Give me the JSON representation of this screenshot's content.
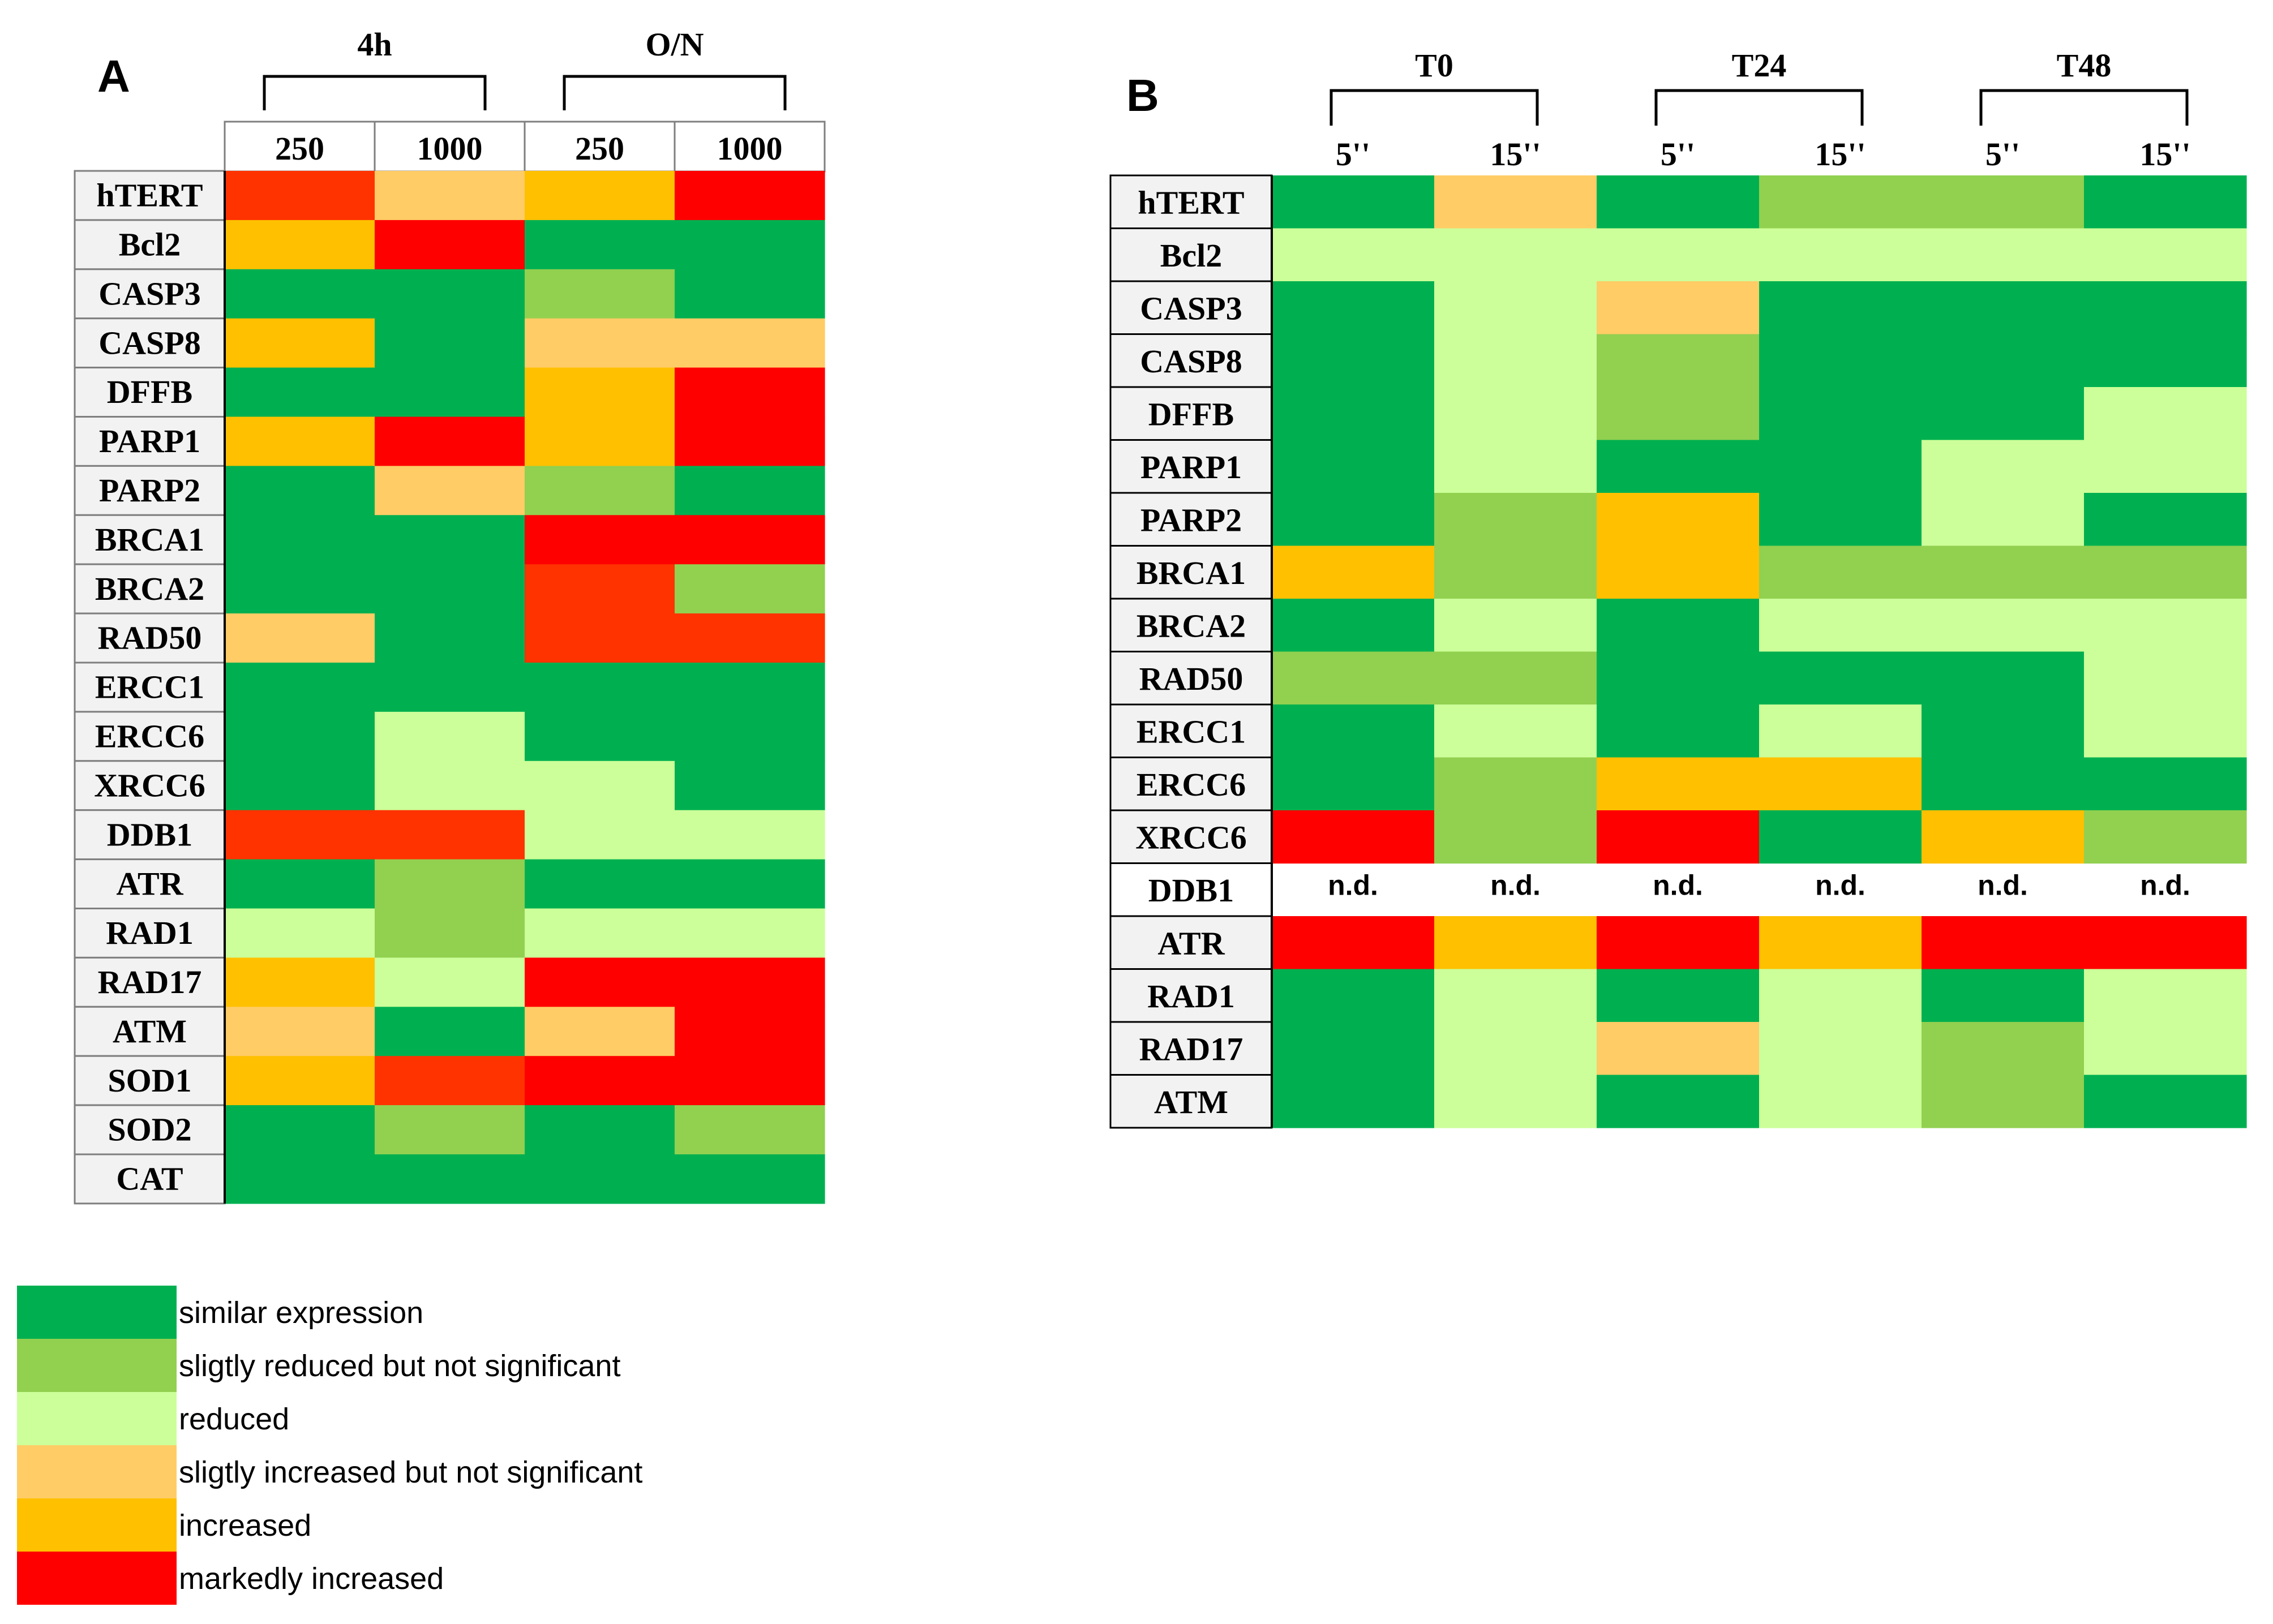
{
  "colors": {
    "similar": "#00B050",
    "slightly_reduced": "#92D050",
    "reduced": "#CCFF99",
    "slightly_increased": "#FFCC66",
    "increased": "#FFC000",
    "markedly_increased": "#FF0000",
    "orange_red": "#FF3300"
  },
  "legend": [
    {
      "key": "similar",
      "label": "similar expression"
    },
    {
      "key": "slightly_reduced",
      "label": "sligtly reduced but not significant"
    },
    {
      "key": "reduced",
      "label": "reduced"
    },
    {
      "key": "slightly_increased",
      "label": "sligtly increased but not significant"
    },
    {
      "key": "increased",
      "label": "increased"
    },
    {
      "key": "markedly_increased",
      "label": "markedly increased"
    }
  ],
  "chart_data": [
    {
      "type": "heatmap",
      "panel": "A",
      "groups": [
        {
          "label": "4h",
          "columns": [
            "250",
            "1000"
          ]
        },
        {
          "label": "O/N",
          "columns": [
            "250",
            "1000"
          ]
        }
      ],
      "columns": [
        "250",
        "1000",
        "250",
        "1000"
      ],
      "rows": [
        "hTERT",
        "Bcl2",
        "CASP3",
        "CASP8",
        "DFFB",
        "PARP1",
        "PARP2",
        "BRCA1",
        "BRCA2",
        "RAD50",
        "ERCC1",
        "ERCC6",
        "XRCC6",
        "DDB1",
        "ATR",
        "RAD1",
        "RAD17",
        "ATM",
        "SOD1",
        "SOD2",
        "CAT"
      ],
      "values": [
        [
          "orange_red",
          "slightly_increased",
          "increased",
          "markedly_increased"
        ],
        [
          "increased",
          "markedly_increased",
          "similar",
          "similar"
        ],
        [
          "similar",
          "similar",
          "slightly_reduced",
          "similar"
        ],
        [
          "increased",
          "similar",
          "slightly_increased",
          "slightly_increased"
        ],
        [
          "similar",
          "similar",
          "increased",
          "markedly_increased"
        ],
        [
          "increased",
          "markedly_increased",
          "increased",
          "markedly_increased"
        ],
        [
          "similar",
          "slightly_increased",
          "slightly_reduced",
          "similar"
        ],
        [
          "similar",
          "similar",
          "markedly_increased",
          "markedly_increased"
        ],
        [
          "similar",
          "similar",
          "orange_red",
          "slightly_reduced"
        ],
        [
          "slightly_increased",
          "similar",
          "orange_red",
          "orange_red"
        ],
        [
          "similar",
          "similar",
          "similar",
          "similar"
        ],
        [
          "similar",
          "reduced",
          "similar",
          "similar"
        ],
        [
          "similar",
          "reduced",
          "reduced",
          "similar"
        ],
        [
          "orange_red",
          "orange_red",
          "reduced",
          "reduced"
        ],
        [
          "similar",
          "slightly_reduced",
          "similar",
          "similar"
        ],
        [
          "reduced",
          "slightly_reduced",
          "reduced",
          "reduced"
        ],
        [
          "increased",
          "reduced",
          "markedly_increased",
          "markedly_increased"
        ],
        [
          "slightly_increased",
          "similar",
          "slightly_increased",
          "markedly_increased"
        ],
        [
          "increased",
          "orange_red",
          "markedly_increased",
          "markedly_increased"
        ],
        [
          "similar",
          "slightly_reduced",
          "similar",
          "slightly_reduced"
        ],
        [
          "similar",
          "similar",
          "similar",
          "similar"
        ]
      ]
    },
    {
      "type": "heatmap",
      "panel": "B",
      "groups": [
        {
          "label": "T0",
          "columns": [
            "5''",
            "15''"
          ]
        },
        {
          "label": "T24",
          "columns": [
            "5''",
            "15''"
          ]
        },
        {
          "label": "T48",
          "columns": [
            "5''",
            "15''"
          ]
        }
      ],
      "columns": [
        "5''",
        "15''",
        "5''",
        "15''",
        "5''",
        "15''"
      ],
      "rows": [
        "hTERT",
        "Bcl2",
        "CASP3",
        "CASP8",
        "DFFB",
        "PARP1",
        "PARP2",
        "BRCA1",
        "BRCA2",
        "RAD50",
        "ERCC1",
        "ERCC6",
        "XRCC6",
        "DDB1",
        "ATR",
        "RAD1",
        "RAD17",
        "ATM"
      ],
      "na_text": "n.d.",
      "values": [
        [
          "similar",
          "slightly_increased",
          "similar",
          "slightly_reduced",
          "slightly_reduced",
          "similar"
        ],
        [
          "reduced",
          "reduced",
          "reduced",
          "reduced",
          "reduced",
          "reduced"
        ],
        [
          "similar",
          "reduced",
          "slightly_increased",
          "similar",
          "similar",
          "similar"
        ],
        [
          "similar",
          "reduced",
          "slightly_reduced",
          "similar",
          "similar",
          "similar"
        ],
        [
          "similar",
          "reduced",
          "slightly_reduced",
          "similar",
          "similar",
          "reduced"
        ],
        [
          "similar",
          "reduced",
          "similar",
          "similar",
          "reduced",
          "reduced"
        ],
        [
          "similar",
          "slightly_reduced",
          "increased",
          "similar",
          "reduced",
          "similar"
        ],
        [
          "increased",
          "slightly_reduced",
          "increased",
          "slightly_reduced",
          "slightly_reduced",
          "slightly_reduced"
        ],
        [
          "similar",
          "reduced",
          "similar",
          "reduced",
          "reduced",
          "reduced"
        ],
        [
          "slightly_reduced",
          "slightly_reduced",
          "similar",
          "similar",
          "similar",
          "reduced"
        ],
        [
          "similar",
          "reduced",
          "similar",
          "reduced",
          "similar",
          "reduced"
        ],
        [
          "similar",
          "slightly_reduced",
          "increased",
          "increased",
          "similar",
          "similar"
        ],
        [
          "markedly_increased",
          "slightly_reduced",
          "markedly_increased",
          "similar",
          "increased",
          "slightly_reduced"
        ],
        [
          "na",
          "na",
          "na",
          "na",
          "na",
          "na"
        ],
        [
          "markedly_increased",
          "increased",
          "markedly_increased",
          "increased",
          "markedly_increased",
          "markedly_increased"
        ],
        [
          "similar",
          "reduced",
          "similar",
          "reduced",
          "similar",
          "reduced"
        ],
        [
          "similar",
          "reduced",
          "slightly_increased",
          "reduced",
          "slightly_reduced",
          "reduced"
        ],
        [
          "similar",
          "reduced",
          "similar",
          "reduced",
          "slightly_reduced",
          "similar"
        ]
      ]
    }
  ]
}
